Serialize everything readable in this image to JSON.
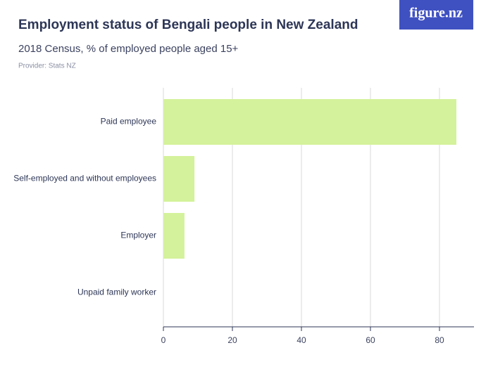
{
  "logo": "figure.nz",
  "chart_data": {
    "type": "bar",
    "orientation": "horizontal",
    "title": "Employment status of Bengali people in New Zealand",
    "subtitle": "2018 Census, % of employed people aged 15+",
    "source": "Provider: Stats NZ",
    "categories": [
      "Paid employee",
      "Self-employed and without employees",
      "Employer",
      "Unpaid family worker"
    ],
    "values": [
      84.9,
      9.0,
      6.1,
      0
    ],
    "color": "#d4f29b",
    "xlim": [
      0,
      90
    ],
    "xticks": [
      0,
      20,
      40,
      60,
      80
    ],
    "grid": true
  }
}
